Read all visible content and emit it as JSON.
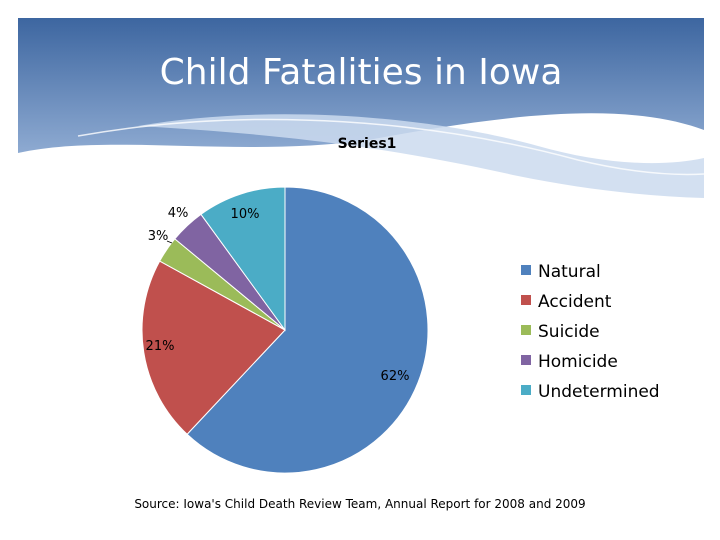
{
  "slide": {
    "title": "Child Fatalities in Iowa",
    "source": "Source:  Iowa's Child Death Review Team, Annual Report for 2008 and 2009"
  },
  "colors": {
    "header_dark": "#3d66a0",
    "header_light": "#9bb7dc",
    "swoosh": "#cbdaee"
  },
  "chart_data": {
    "type": "pie",
    "title": "Series1",
    "legend_position": "right",
    "start_angle_deg": 0,
    "direction": "clockwise",
    "slices": [
      {
        "label": "Natural",
        "value": 62,
        "display": "62%",
        "color": "#4f81bd"
      },
      {
        "label": "Accident",
        "value": 21,
        "display": "21%",
        "color": "#c0504d"
      },
      {
        "label": "Suicide",
        "value": 3,
        "display": "3%",
        "color": "#9bbb59"
      },
      {
        "label": "Homicide",
        "value": 4,
        "display": "4%",
        "color": "#8064a2"
      },
      {
        "label": "Undetermined",
        "value": 10,
        "display": "10%",
        "color": "#4bacc6"
      }
    ]
  }
}
